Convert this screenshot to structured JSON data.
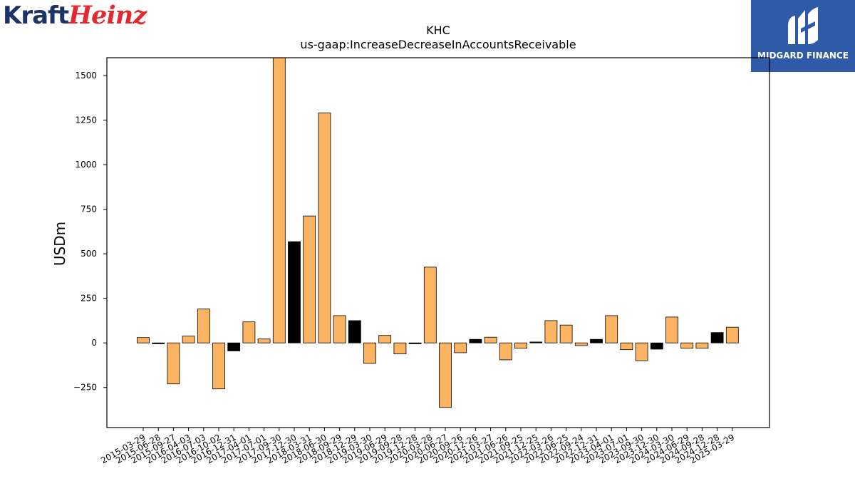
{
  "logos": {
    "left": {
      "part1": "Kraft",
      "part2": "Heinz"
    },
    "right": {
      "text": "MIDGARD FINANCE",
      "icon": "midgard-m-icon"
    }
  },
  "colors": {
    "bar": "#fdb462",
    "bar_alt": "#000000",
    "edge": "#000000"
  },
  "chart_data": {
    "type": "bar",
    "title": "KHC",
    "subtitle": "us-gaap:IncreaseDecreaseInAccountsReceivable",
    "ylabel": "USDm",
    "xlabel": "",
    "ylim": [
      -475,
      1600
    ],
    "yticks": [
      -250,
      0,
      250,
      500,
      750,
      1000,
      1250,
      1500
    ],
    "ytick_labels": [
      "−250",
      "0",
      "250",
      "500",
      "750",
      "1000",
      "1250",
      "1500"
    ],
    "grid": false,
    "categories": [
      "2015-03-29",
      "2015-06-28",
      "2015-09-27",
      "2016-04-03",
      "2016-07-03",
      "2016-10-02",
      "2016-12-31",
      "2017-04-01",
      "2017-07-01",
      "2017-09-30",
      "2017-12-30",
      "2018-03-31",
      "2018-06-30",
      "2018-09-29",
      "2018-12-29",
      "2019-03-30",
      "2019-06-29",
      "2019-09-28",
      "2019-12-28",
      "2020-03-28",
      "2020-06-27",
      "2020-09-26",
      "2020-12-26",
      "2021-03-27",
      "2021-06-26",
      "2021-09-25",
      "2021-12-25",
      "2022-03-26",
      "2022-06-25",
      "2022-09-24",
      "2022-12-31",
      "2023-04-01",
      "2023-07-01",
      "2023-09-30",
      "2023-12-30",
      "2024-03-30",
      "2024-06-29",
      "2024-09-28",
      "2024-12-28",
      "2025-03-29"
    ],
    "values": [
      30,
      -5,
      -230,
      38,
      190,
      -258,
      -45,
      118,
      22,
      1640,
      568,
      712,
      1290,
      153,
      125,
      -115,
      42,
      -62,
      -5,
      425,
      -362,
      -55,
      20,
      32,
      -95,
      -30,
      5,
      125,
      100,
      -15,
      20,
      153,
      -38,
      -100,
      -35,
      145,
      -30,
      -30,
      58,
      88
    ],
    "highlight": [
      false,
      true,
      false,
      false,
      false,
      false,
      true,
      false,
      false,
      false,
      true,
      false,
      false,
      false,
      true,
      false,
      false,
      false,
      true,
      false,
      false,
      false,
      true,
      false,
      false,
      false,
      true,
      false,
      false,
      false,
      true,
      false,
      false,
      false,
      true,
      false,
      false,
      false,
      true,
      false
    ]
  }
}
